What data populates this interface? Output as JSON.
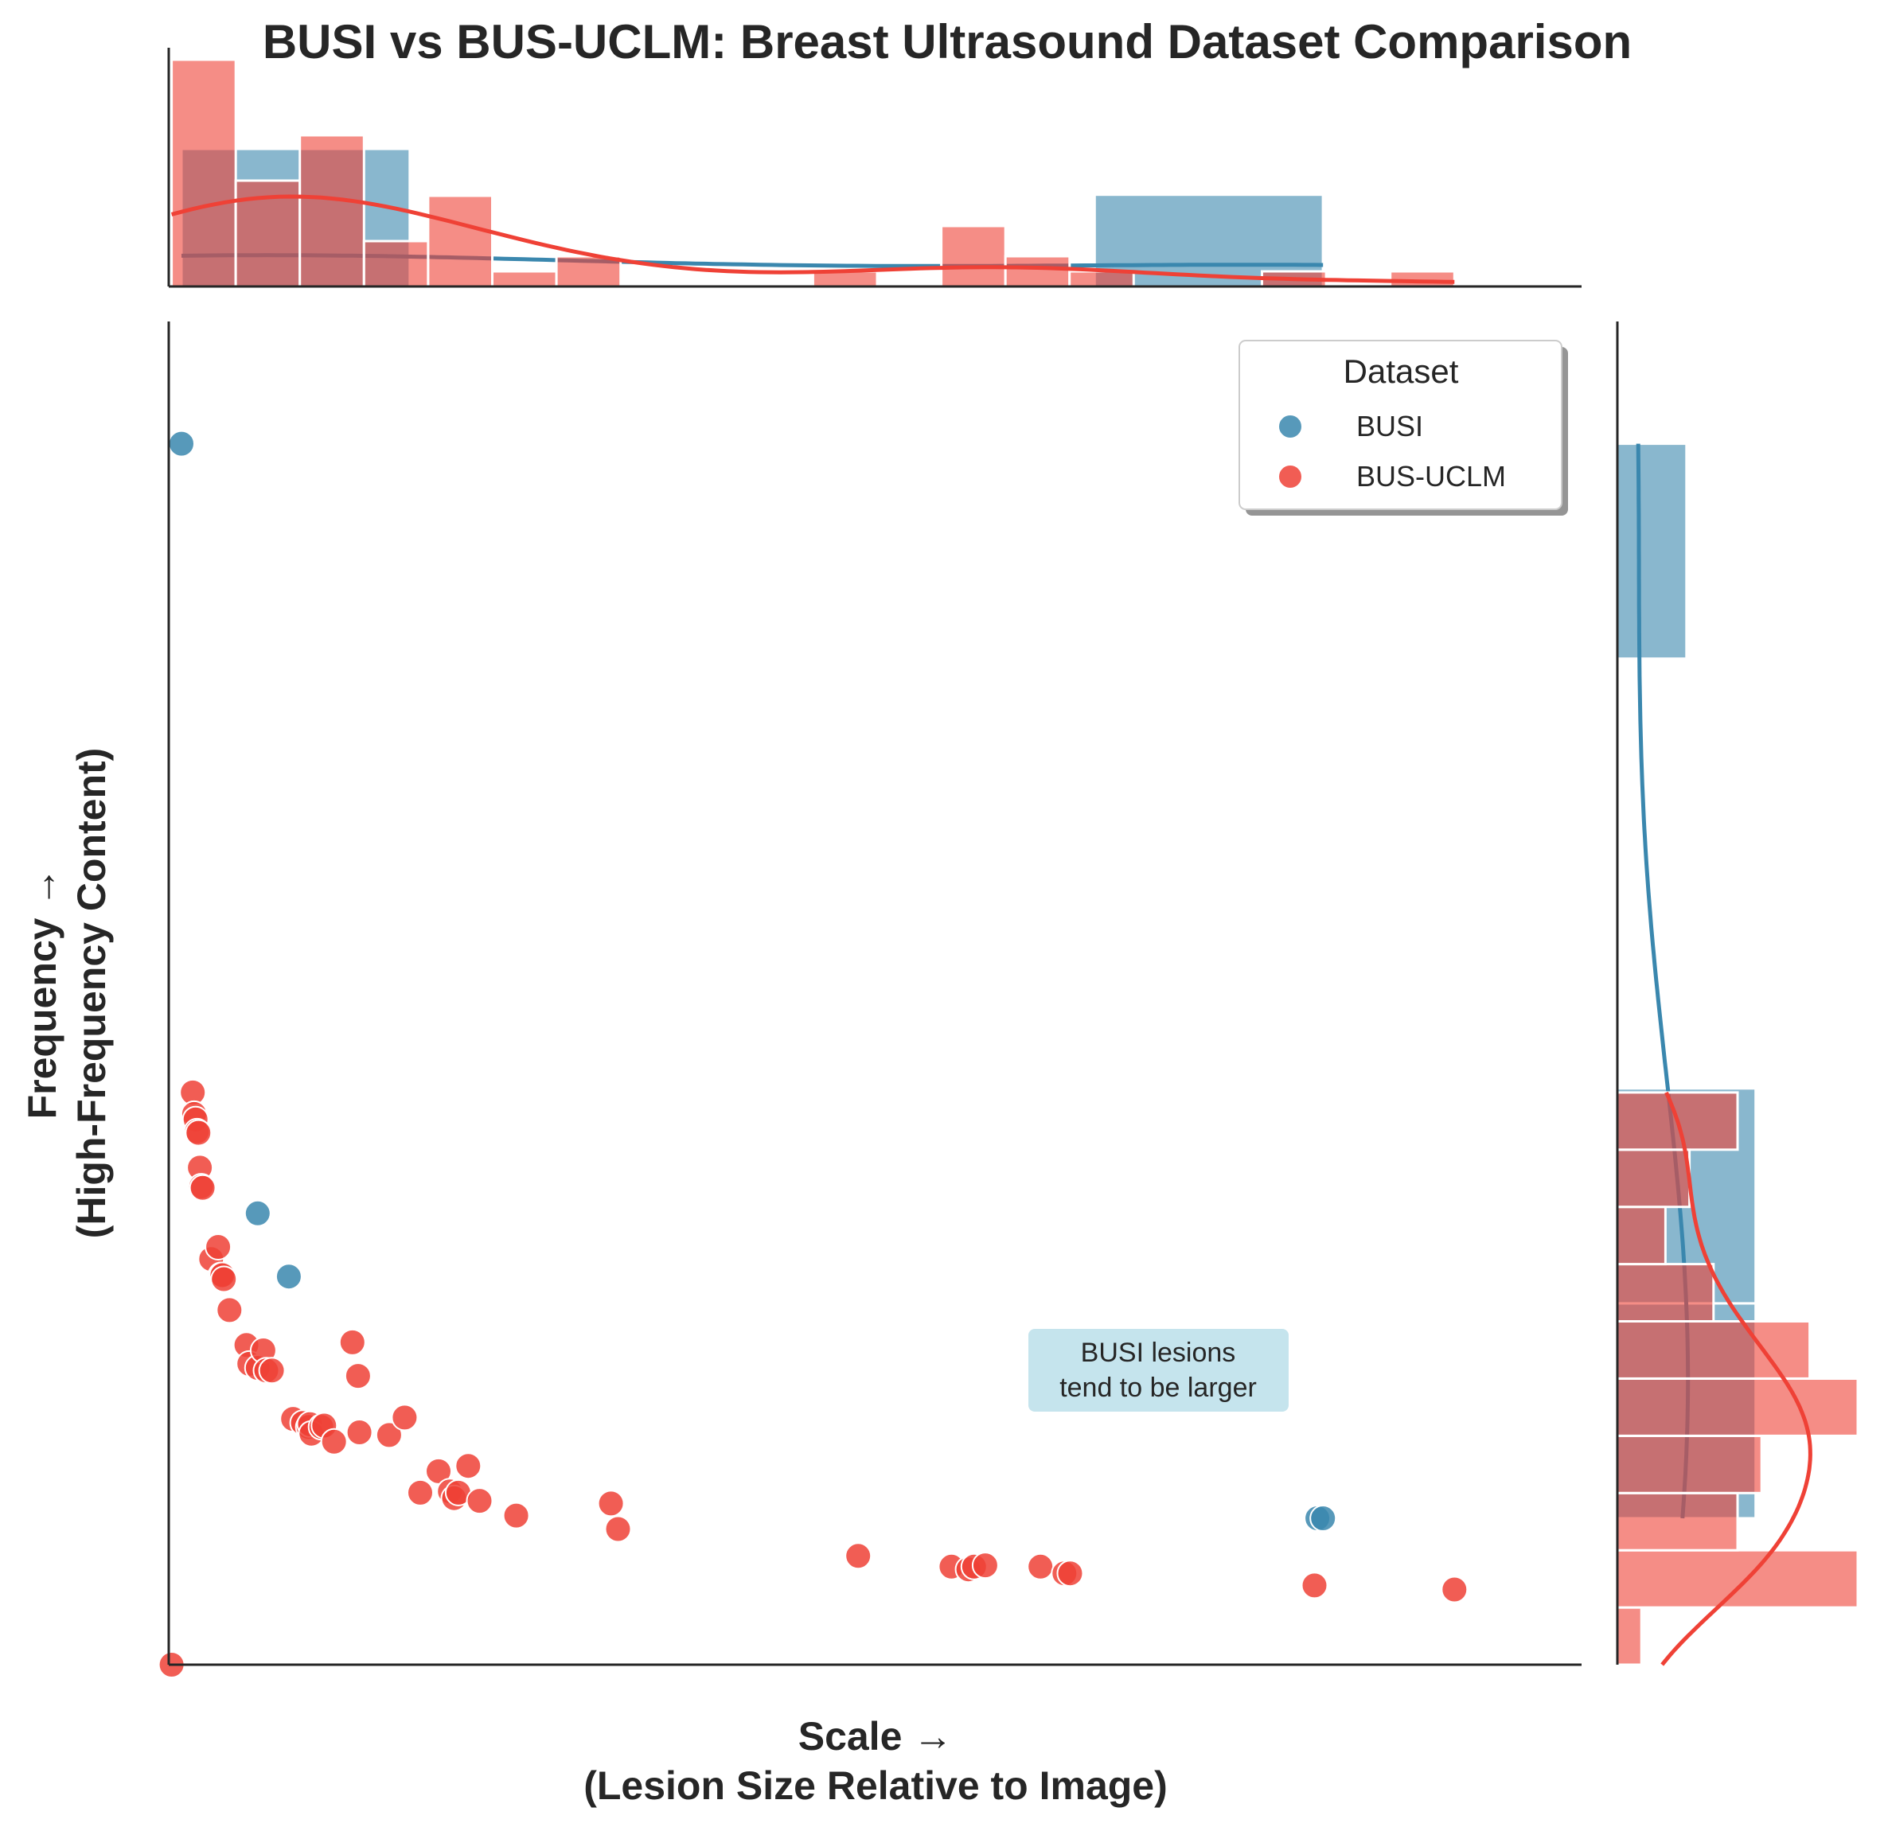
{
  "chart_data": {
    "type": "scatter",
    "title": "BUSI vs BUS-UCLM: Breast Ultrasound Dataset Comparison",
    "xlabel_line1": "Scale →",
    "xlabel_line2": "(Lesion Size Relative to Image)",
    "ylabel_line1": "Frequency →",
    "ylabel_line2": "(High-Frequency Content)",
    "xlim": [
      0,
      1
    ],
    "ylim": [
      0,
      1
    ],
    "ticks_shown": false,
    "grid": false,
    "marginals": {
      "top": "histogram + kde",
      "right": "histogram + kde"
    },
    "legend": {
      "title": "Dataset",
      "placement": "top-right"
    },
    "annotation": {
      "line1": "BUSI lesions",
      "line2": "tend to be larger"
    },
    "series": [
      {
        "name": "BUSI",
        "color": "#3A87AE",
        "points": [
          [
            0.009,
            0.909
          ],
          [
            0.063,
            0.336
          ],
          [
            0.085,
            0.289
          ],
          [
            0.813,
            0.109
          ],
          [
            0.817,
            0.109
          ]
        ]
      },
      {
        "name": "BUS-UCLM",
        "color": "#EF4136",
        "points": [
          [
            0.002,
            0.0
          ],
          [
            0.017,
            0.426
          ],
          [
            0.018,
            0.41
          ],
          [
            0.019,
            0.406
          ],
          [
            0.02,
            0.397
          ],
          [
            0.021,
            0.396
          ],
          [
            0.022,
            0.37
          ],
          [
            0.023,
            0.356
          ],
          [
            0.024,
            0.355
          ],
          [
            0.03,
            0.302
          ],
          [
            0.035,
            0.311
          ],
          [
            0.037,
            0.29
          ],
          [
            0.038,
            0.29
          ],
          [
            0.039,
            0.287
          ],
          [
            0.043,
            0.264
          ],
          [
            0.055,
            0.238
          ],
          [
            0.057,
            0.224
          ],
          [
            0.063,
            0.221
          ],
          [
            0.067,
            0.234
          ],
          [
            0.069,
            0.219
          ],
          [
            0.073,
            0.219
          ],
          [
            0.088,
            0.183
          ],
          [
            0.095,
            0.18
          ],
          [
            0.099,
            0.177
          ],
          [
            0.1,
            0.179
          ],
          [
            0.101,
            0.172
          ],
          [
            0.108,
            0.177
          ],
          [
            0.11,
            0.178
          ],
          [
            0.117,
            0.166
          ],
          [
            0.13,
            0.24
          ],
          [
            0.134,
            0.215
          ],
          [
            0.135,
            0.173
          ],
          [
            0.156,
            0.171
          ],
          [
            0.167,
            0.184
          ],
          [
            0.178,
            0.128
          ],
          [
            0.191,
            0.144
          ],
          [
            0.199,
            0.129
          ],
          [
            0.202,
            0.124
          ],
          [
            0.205,
            0.128
          ],
          [
            0.212,
            0.148
          ],
          [
            0.22,
            0.122
          ],
          [
            0.246,
            0.111
          ],
          [
            0.313,
            0.12
          ],
          [
            0.318,
            0.101
          ],
          [
            0.488,
            0.081
          ],
          [
            0.554,
            0.073
          ],
          [
            0.566,
            0.071
          ],
          [
            0.57,
            0.073
          ],
          [
            0.578,
            0.074
          ],
          [
            0.617,
            0.073
          ],
          [
            0.634,
            0.068
          ],
          [
            0.638,
            0.068
          ],
          [
            0.811,
            0.059
          ],
          [
            0.91,
            0.056
          ]
        ]
      }
    ]
  }
}
